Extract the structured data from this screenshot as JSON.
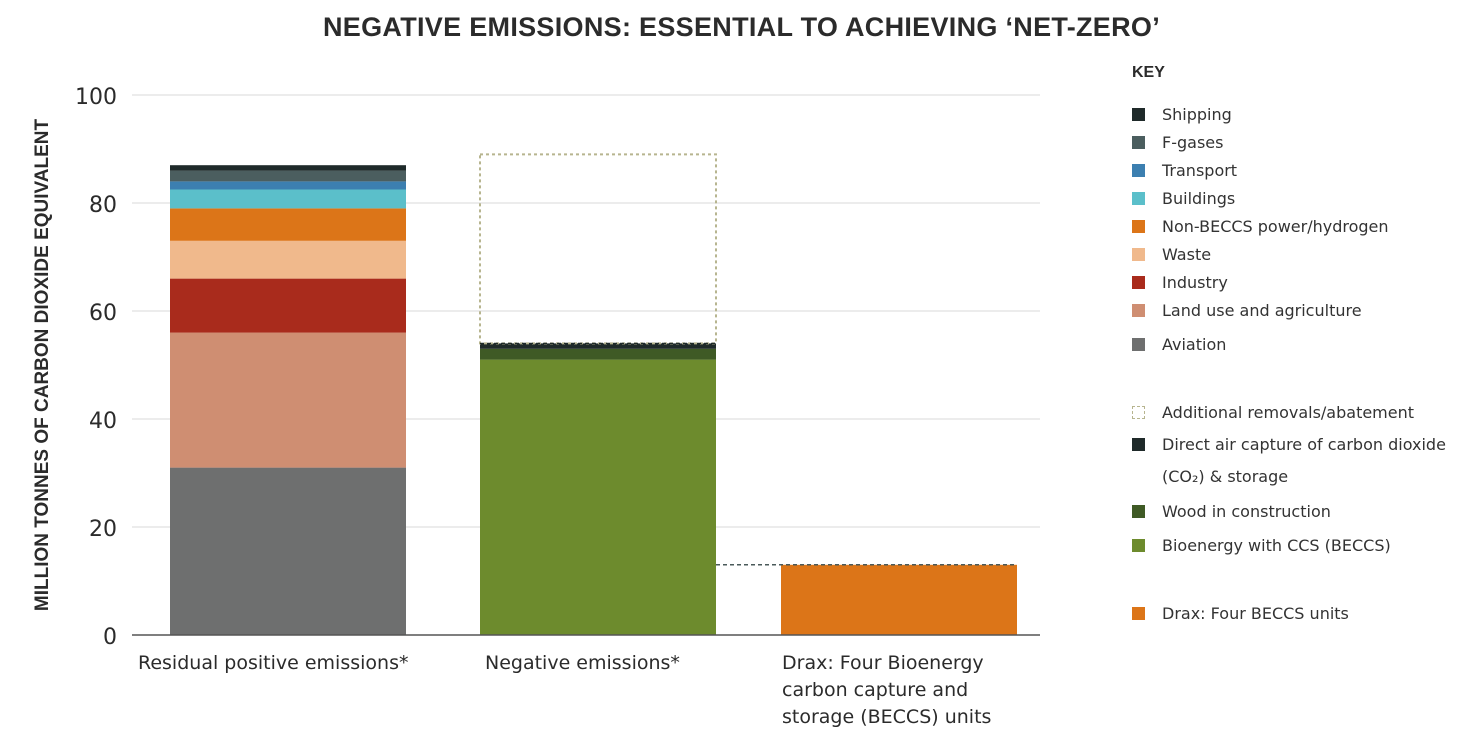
{
  "title": "NEGATIVE EMISSIONS: ESSENTIAL TO ACHIEVING ‘NET-ZERO’",
  "chart_data": {
    "type": "bar",
    "stacked": true,
    "title": "NEGATIVE EMISSIONS: ESSENTIAL TO ACHIEVING ‘NET-ZERO’",
    "ylabel": "MILLION TONNES OF CARBON DIOXIDE EQUIVALENT",
    "xlabel": "",
    "ylim": [
      0,
      100
    ],
    "yticks": [
      0,
      20,
      40,
      60,
      80,
      100
    ],
    "grid": true,
    "legend_title": "KEY",
    "legend_position": "right",
    "categories": [
      "Residual positive emissions*",
      "Negative emissions*",
      "Drax: Four Bioenergy carbon capture and storage (BECCS) units"
    ],
    "series": [
      {
        "name": "Aviation",
        "color": "#6e6f6f",
        "values": [
          31,
          0,
          0
        ]
      },
      {
        "name": "Land use and agriculture",
        "color": "#cf8e72",
        "values": [
          25,
          0,
          0
        ]
      },
      {
        "name": "Industry",
        "color": "#a92b1c",
        "values": [
          10,
          0,
          0
        ]
      },
      {
        "name": "Waste",
        "color": "#f0b98c",
        "values": [
          7,
          0,
          0
        ]
      },
      {
        "name": "Non-BECCS power/hydrogen",
        "color": "#dc7518",
        "values": [
          6,
          0,
          0
        ]
      },
      {
        "name": "Buildings",
        "color": "#5bbfca",
        "values": [
          3.5,
          0,
          0
        ]
      },
      {
        "name": "Transport",
        "color": "#3c7fb0",
        "values": [
          1.5,
          0,
          0
        ]
      },
      {
        "name": "F-gases",
        "color": "#4b5e5f",
        "values": [
          2,
          0,
          0
        ]
      },
      {
        "name": "Shipping",
        "color": "#1f2a2a",
        "values": [
          1,
          0,
          0
        ]
      },
      {
        "name": "Bioenergy with CCS (BECCS)",
        "color": "#6d8b2d",
        "values": [
          0,
          51,
          0
        ]
      },
      {
        "name": "Wood in construction",
        "color": "#3f5a25",
        "values": [
          0,
          2,
          0
        ]
      },
      {
        "name": "Direct air capture of carbon dioxide (CO₂) & storage",
        "color": "#1f2a2a",
        "values": [
          0,
          1,
          0
        ]
      },
      {
        "name": "Additional removals/abatement",
        "color": "#b7b58f",
        "style": "dotted-outline",
        "values": [
          0,
          35,
          0
        ]
      },
      {
        "name": "Drax: Four BECCS units",
        "color": "#dc7518",
        "values": [
          0,
          0,
          13
        ]
      }
    ],
    "reference_line": {
      "value": 13,
      "style": "dashed",
      "from_category": 1,
      "to_category": 2
    }
  },
  "legend": {
    "title": "KEY",
    "items": [
      {
        "label": "Shipping",
        "color": "#1f2a2a"
      },
      {
        "label": "F-gases",
        "color": "#4b5e5f"
      },
      {
        "label": "Transport",
        "color": "#3c7fb0"
      },
      {
        "label": "Buildings",
        "color": "#5bbfca"
      },
      {
        "label": "Non-BECCS power/hydrogen",
        "color": "#dc7518"
      },
      {
        "label": "Waste",
        "color": "#f0b98c"
      },
      {
        "label": "Industry",
        "color": "#a92b1c"
      },
      {
        "label": "Land use and agriculture",
        "color": "#cf8e72"
      },
      {
        "label": "Aviation",
        "color": "#6e6f6f"
      },
      {
        "label": "Additional removals/abatement",
        "color": "#b7b58f",
        "dotted": true
      },
      {
        "label": "Direct air capture of carbon dioxide",
        "sublabel": "(CO₂) & storage",
        "color": "#1f2a2a"
      },
      {
        "label": "Wood in construction",
        "color": "#3f5a25"
      },
      {
        "label": "Bioenergy with CCS (BECCS)",
        "color": "#6d8b2d"
      },
      {
        "label": "Drax: Four BECCS units",
        "color": "#dc7518"
      }
    ]
  },
  "x_categories": {
    "cat0_line1": "Residual positive emissions*",
    "cat1_line1": "Negative emissions*",
    "cat2_line1": "Drax: Four Bioenergy",
    "cat2_line2": "carbon capture and",
    "cat2_line3": "storage (BECCS) units"
  }
}
